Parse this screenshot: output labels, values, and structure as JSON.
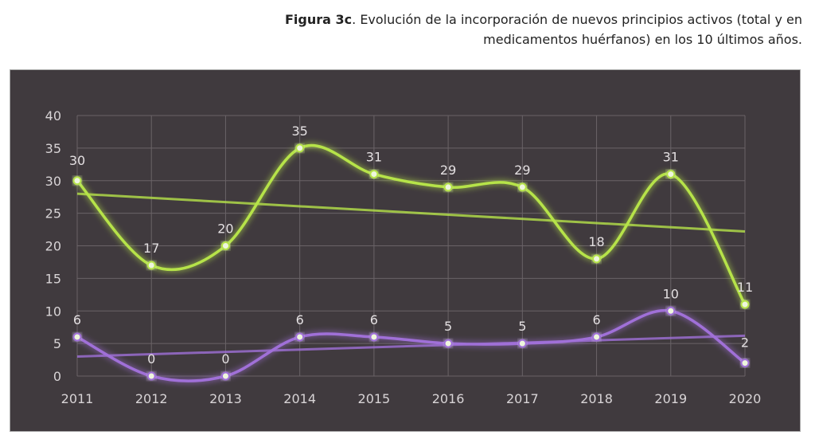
{
  "caption": {
    "bold": "Figura 3c",
    "text": ". Evolución de la incorporación de nuevos principios activos (total y en medicamentos huérfanos) en los 10 últimos años."
  },
  "chart_data": {
    "type": "line",
    "title": "",
    "xlabel": "",
    "ylabel": "",
    "categories": [
      "2011",
      "2012",
      "2013",
      "2014",
      "2015",
      "2016",
      "2017",
      "2018",
      "2019",
      "2020"
    ],
    "ylim": [
      0,
      40
    ],
    "yticks": [
      0,
      5,
      10,
      15,
      20,
      25,
      30,
      35,
      40
    ],
    "grid": true,
    "legend": "none",
    "smooth": true,
    "series": [
      {
        "values": [
          30,
          17,
          20,
          35,
          31,
          29,
          29,
          18,
          31,
          11
        ],
        "color": "#b6e34a",
        "trendline": [
          28,
          22.2
        ]
      },
      {
        "values": [
          6,
          0,
          0,
          6,
          6,
          5,
          5,
          6,
          10,
          2
        ],
        "color": "#a070d8",
        "trendline": [
          3,
          6.2
        ]
      }
    ]
  }
}
